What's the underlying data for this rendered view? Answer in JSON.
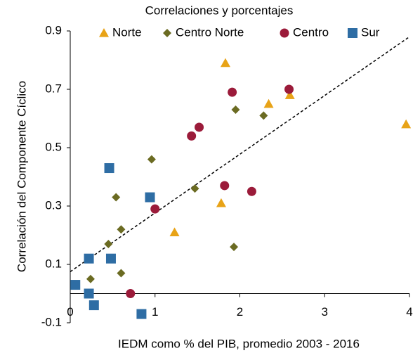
{
  "chart_data": {
    "type": "scatter",
    "title": "Correlaciones y porcentajes",
    "x_label": "IEDM como % del PIB, promedio 2003 - 2016",
    "y_label": "Correlación del Componente Cíclico",
    "xlim": [
      0,
      4
    ],
    "xticks": [
      0,
      1,
      2,
      3,
      4
    ],
    "ylim": [
      -0.1,
      0.9
    ],
    "yticks": [
      -0.1,
      0.1,
      0.3,
      0.5,
      0.7,
      0.9
    ],
    "legend": "top",
    "trendline": {
      "x": [
        0,
        4
      ],
      "y": [
        0.075,
        0.88
      ]
    },
    "series": [
      {
        "name": "Norte",
        "marker": "triangle",
        "color": "#e8a317",
        "x": [
          1.83,
          2.34,
          2.59,
          3.96,
          1.78,
          1.23
        ],
        "values": [
          0.79,
          0.65,
          0.68,
          0.58,
          0.31,
          0.21
        ]
      },
      {
        "name": "Centro Norte",
        "marker": "diamond",
        "color": "#6b6b22",
        "x": [
          1.95,
          2.28,
          0.96,
          1.47,
          0.54,
          0.6,
          0.45,
          1.93,
          0.6,
          0.24
        ],
        "values": [
          0.63,
          0.61,
          0.46,
          0.36,
          0.33,
          0.22,
          0.17,
          0.16,
          0.07,
          0.05
        ]
      },
      {
        "name": "Centro",
        "marker": "circle",
        "color": "#9b1b3a",
        "x": [
          1.91,
          2.58,
          1.52,
          1.43,
          1.0,
          1.82,
          2.14,
          0.71
        ],
        "values": [
          0.69,
          0.7,
          0.57,
          0.54,
          0.29,
          0.37,
          0.35,
          0.0
        ]
      },
      {
        "name": "Sur",
        "marker": "square",
        "color": "#2e6da4",
        "x": [
          0.46,
          0.94,
          0.22,
          0.48,
          0.06,
          0.22,
          0.28,
          0.84
        ],
        "values": [
          0.43,
          0.33,
          0.12,
          0.12,
          0.03,
          0.0,
          -0.04,
          -0.07
        ]
      }
    ]
  }
}
